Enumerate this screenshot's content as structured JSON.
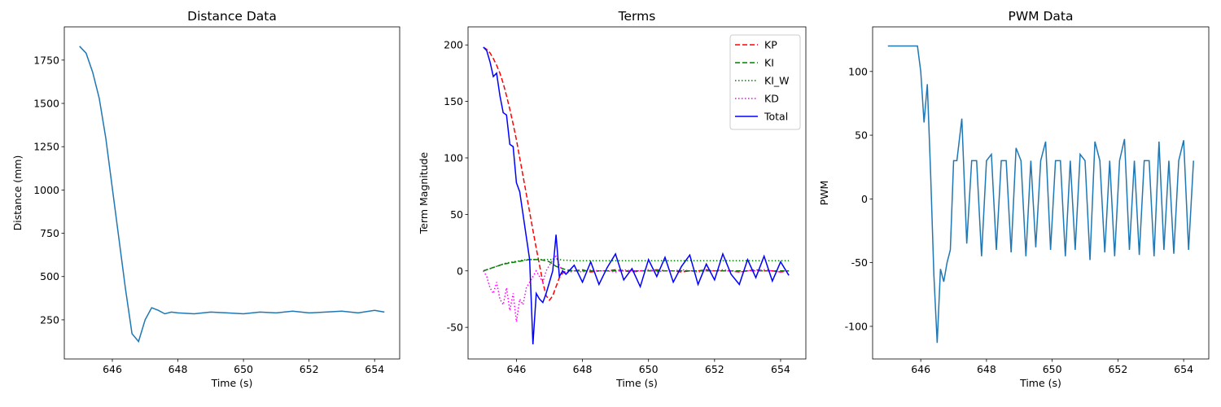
{
  "chart_data": [
    {
      "type": "line",
      "title": "Distance Data",
      "xlabel": "Time (s)",
      "ylabel": "Distance (mm)",
      "x": [
        645.0,
        645.2,
        645.4,
        645.6,
        645.8,
        646.0,
        646.2,
        646.4,
        646.6,
        646.8,
        647.0,
        647.2,
        647.4,
        647.6,
        647.8,
        648.0,
        648.5,
        649.0,
        649.5,
        650.0,
        650.5,
        651.0,
        651.5,
        652.0,
        652.5,
        653.0,
        653.5,
        654.0,
        654.3
      ],
      "series": [
        {
          "name": null,
          "color": "#1f77b4",
          "linestyle": "solid",
          "values": [
            1830,
            1790,
            1680,
            1530,
            1300,
            1010,
            720,
            430,
            170,
            125,
            250,
            320,
            305,
            285,
            295,
            290,
            285,
            295,
            290,
            285,
            295,
            290,
            300,
            290,
            295,
            300,
            290,
            305,
            295
          ]
        }
      ],
      "xlim": [
        644.535,
        654.765
      ],
      "xticks": [
        646,
        648,
        650,
        652,
        654
      ],
      "ylim": [
        24,
        1942
      ],
      "yticks": [
        250,
        500,
        750,
        1000,
        1250,
        1500,
        1750
      ]
    },
    {
      "type": "line",
      "title": "Terms",
      "xlabel": "Time (s)",
      "ylabel": "Term Magnitude",
      "legend": "upper right",
      "x": [
        645.0,
        645.1,
        645.2,
        645.3,
        645.4,
        645.5,
        645.6,
        645.7,
        645.8,
        645.9,
        646.0,
        646.1,
        646.2,
        646.3,
        646.4,
        646.5,
        646.6,
        646.7,
        646.8,
        646.9,
        647.0,
        647.1,
        647.2,
        647.3,
        647.4,
        647.5,
        647.75,
        648,
        648.25,
        648.5,
        648.75,
        649,
        649.25,
        649.5,
        649.75,
        650,
        650.25,
        650.5,
        650.75,
        651,
        651.25,
        651.5,
        651.75,
        652,
        652.25,
        652.5,
        652.75,
        653,
        653.25,
        653.5,
        653.75,
        654,
        654.25
      ],
      "series": [
        {
          "name": "KP",
          "color": "#ff0000",
          "linestyle": "dashed",
          "values": [
            198,
            196,
            193,
            188,
            182,
            175,
            166,
            155,
            143,
            130,
            116,
            100,
            84,
            68,
            52,
            36,
            20,
            5,
            -10,
            -22,
            -26,
            -22,
            -14,
            -6,
            -2,
            0,
            0,
            1,
            -1,
            0,
            0,
            1,
            0,
            -1,
            0,
            0,
            1,
            0,
            0,
            -1,
            0,
            0,
            1,
            0,
            0,
            0,
            -1,
            0,
            1,
            0,
            0,
            -1,
            0
          ]
        },
        {
          "name": "KI",
          "color": "#008000",
          "linestyle": "dashed",
          "values": [
            0,
            1,
            2,
            3,
            4,
            5,
            6,
            6.5,
            7,
            7.5,
            8,
            8.5,
            9,
            9.5,
            10,
            10,
            10,
            10,
            9.5,
            9,
            8,
            6,
            4,
            3,
            2,
            1,
            0,
            0,
            0,
            0,
            0,
            0,
            0,
            0,
            0,
            0,
            0,
            0,
            0,
            0,
            0,
            0,
            0,
            0,
            0,
            0,
            0,
            0,
            0,
            0,
            0,
            0,
            0
          ]
        },
        {
          "name": "KI_W",
          "color": "#008000",
          "linestyle": "dotted",
          "values": [
            0,
            1,
            2,
            3,
            4,
            5,
            6,
            7,
            7.5,
            8,
            8.5,
            9,
            9.5,
            10,
            10,
            10,
            10,
            10,
            10,
            10,
            10,
            10,
            10,
            10,
            9.5,
            9.5,
            9,
            9,
            9,
            9,
            9,
            9,
            9,
            9,
            9,
            9,
            9,
            9,
            9,
            9,
            9,
            9,
            9,
            9,
            9,
            9,
            9,
            9,
            9,
            9,
            9,
            9,
            9
          ]
        },
        {
          "name": "KD",
          "color": "#ff00ff",
          "linestyle": "dotted",
          "values": [
            0,
            -5,
            -15,
            -20,
            -10,
            -25,
            -30,
            -15,
            -35,
            -20,
            -45,
            -25,
            -30,
            -15,
            -10,
            -5,
            0,
            -5,
            -10,
            0,
            5,
            10,
            13,
            5,
            0,
            -2,
            0,
            -1,
            1,
            0,
            0,
            -1,
            1,
            0,
            0,
            1,
            -1,
            0,
            0,
            1,
            0,
            -1,
            0,
            0,
            1,
            0,
            -1,
            0,
            0,
            1,
            0,
            -1,
            0
          ]
        },
        {
          "name": "Total",
          "color": "#0000ff",
          "linestyle": "solid",
          "values": [
            198,
            195,
            185,
            172,
            175,
            155,
            140,
            138,
            112,
            110,
            78,
            70,
            50,
            30,
            10,
            -65,
            -20,
            -25,
            -28,
            -20,
            -10,
            0,
            32,
            -5,
            0,
            -3,
            5,
            -10,
            8,
            -12,
            3,
            15,
            -8,
            2,
            -14,
            10,
            -5,
            12,
            -10,
            4,
            14,
            -12,
            6,
            -8,
            15,
            -3,
            -12,
            10,
            -6,
            13,
            -9,
            8,
            -4
          ]
        }
      ],
      "xlim": [
        644.535,
        654.765
      ],
      "xticks": [
        646,
        648,
        650,
        652,
        654
      ],
      "ylim": [
        -78,
        216
      ],
      "yticks": [
        -50,
        0,
        50,
        100,
        150,
        200
      ]
    },
    {
      "type": "line",
      "title": "PWM Data",
      "xlabel": "Time (s)",
      "ylabel": "PWM",
      "x": [
        645.0,
        645.5,
        645.9,
        646.0,
        646.1,
        646.2,
        646.3,
        646.4,
        646.5,
        646.6,
        646.7,
        646.8,
        646.9,
        647.0,
        647.1,
        647.25,
        647.4,
        647.55,
        647.7,
        647.85,
        648.0,
        648.15,
        648.3,
        648.45,
        648.6,
        648.75,
        648.9,
        649.05,
        649.2,
        649.35,
        649.5,
        649.65,
        649.8,
        649.95,
        650.1,
        650.25,
        650.4,
        650.55,
        650.7,
        650.85,
        651.0,
        651.15,
        651.3,
        651.45,
        651.6,
        651.75,
        651.9,
        652.05,
        652.2,
        652.35,
        652.5,
        652.65,
        652.8,
        652.95,
        653.1,
        653.25,
        653.4,
        653.55,
        653.7,
        653.85,
        654.0,
        654.15,
        654.3
      ],
      "series": [
        {
          "name": null,
          "color": "#1f77b4",
          "linestyle": "solid",
          "values": [
            120,
            120,
            120,
            100,
            60,
            90,
            20,
            -60,
            -113,
            -55,
            -65,
            -50,
            -40,
            30,
            30,
            63,
            -35,
            30,
            30,
            -45,
            30,
            35,
            -40,
            30,
            30,
            -42,
            40,
            30,
            -45,
            30,
            -38,
            30,
            45,
            -40,
            30,
            30,
            -45,
            30,
            -40,
            35,
            30,
            -48,
            45,
            30,
            -42,
            30,
            -45,
            30,
            47,
            -40,
            30,
            -44,
            30,
            30,
            -45,
            45,
            -40,
            30,
            -43,
            30,
            46,
            -40,
            30
          ]
        }
      ],
      "xlim": [
        644.535,
        654.765
      ],
      "xticks": [
        646,
        648,
        650,
        652,
        654
      ],
      "ylim": [
        -125.6,
        135
      ],
      "yticks": [
        -100,
        -50,
        0,
        50,
        100
      ]
    }
  ]
}
